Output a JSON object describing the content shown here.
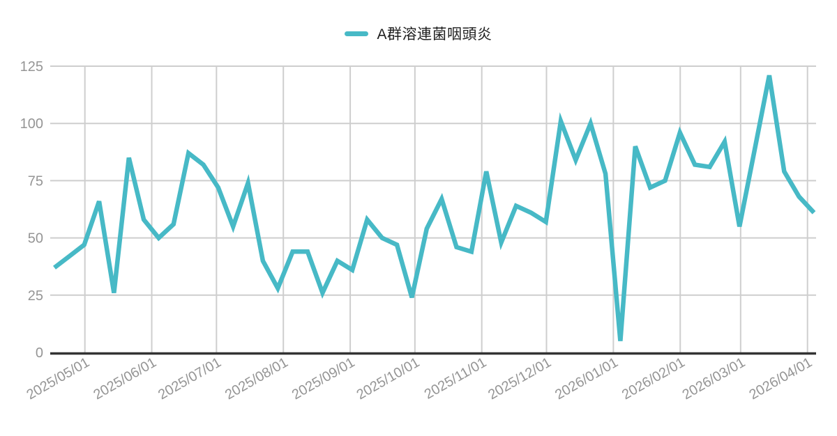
{
  "legend": {
    "items": [
      {
        "label": "A群溶連菌咽頭炎",
        "color": "#47b9c6"
      }
    ]
  },
  "chart_data": {
    "type": "line",
    "title": "",
    "series": [
      {
        "name": "A群溶連菌咽頭炎",
        "color": "#47b9c6",
        "x": [
          "2025/04/14",
          "2025/04/21",
          "2025/04/28",
          "2025/05/05",
          "2025/05/12",
          "2025/05/19",
          "2025/05/26",
          "2025/06/02",
          "2025/06/09",
          "2025/06/16",
          "2025/06/23",
          "2025/06/30",
          "2025/07/07",
          "2025/07/14",
          "2025/07/21",
          "2025/07/28",
          "2025/08/04",
          "2025/08/11",
          "2025/08/18",
          "2025/08/25",
          "2025/09/01",
          "2025/09/08",
          "2025/09/15",
          "2025/09/22",
          "2025/09/29",
          "2025/10/06",
          "2025/10/13",
          "2025/10/20",
          "2025/10/27",
          "2025/11/03",
          "2025/11/10",
          "2025/11/17",
          "2025/11/24",
          "2025/12/01",
          "2025/12/08",
          "2025/12/15",
          "2025/12/22",
          "2025/12/29",
          "2026/01/05",
          "2026/01/12",
          "2026/01/19",
          "2026/01/26",
          "2026/02/02",
          "2026/02/09",
          "2026/02/16",
          "2026/02/23",
          "2026/03/02",
          "2026/03/09",
          "2026/03/16",
          "2026/03/23",
          "2026/03/30",
          "2026/04/06"
        ],
        "values": [
          37,
          42,
          47,
          66,
          26,
          85,
          58,
          50,
          56,
          87,
          82,
          72,
          55,
          74,
          40,
          28,
          44,
          44,
          26,
          40,
          36,
          58,
          50,
          47,
          24,
          54,
          67,
          46,
          44,
          79,
          48,
          64,
          61,
          57,
          101,
          84,
          100,
          78,
          5,
          90,
          72,
          75,
          96,
          82,
          81,
          92,
          55,
          88,
          121,
          79,
          68,
          61
        ]
      }
    ],
    "x_tick_labels": [
      "2025/05/01",
      "2025/06/01",
      "2025/07/01",
      "2025/08/01",
      "2025/09/01",
      "2025/10/01",
      "2025/11/01",
      "2025/12/01",
      "2026/01/01",
      "2026/02/01",
      "2026/03/01",
      "2026/04/01"
    ],
    "y_ticks": [
      0,
      25,
      50,
      75,
      100,
      125
    ],
    "ylim": [
      0,
      125
    ],
    "grid": true,
    "legend_position": "top",
    "x_label_rotation_deg": -30
  },
  "style": {
    "background": "#ffffff",
    "grid_color": "#cecece",
    "axis_color": "#333333",
    "tick_label_color": "#959595",
    "legend_text_color": "#1f1f1f",
    "line_width": 6.5
  }
}
